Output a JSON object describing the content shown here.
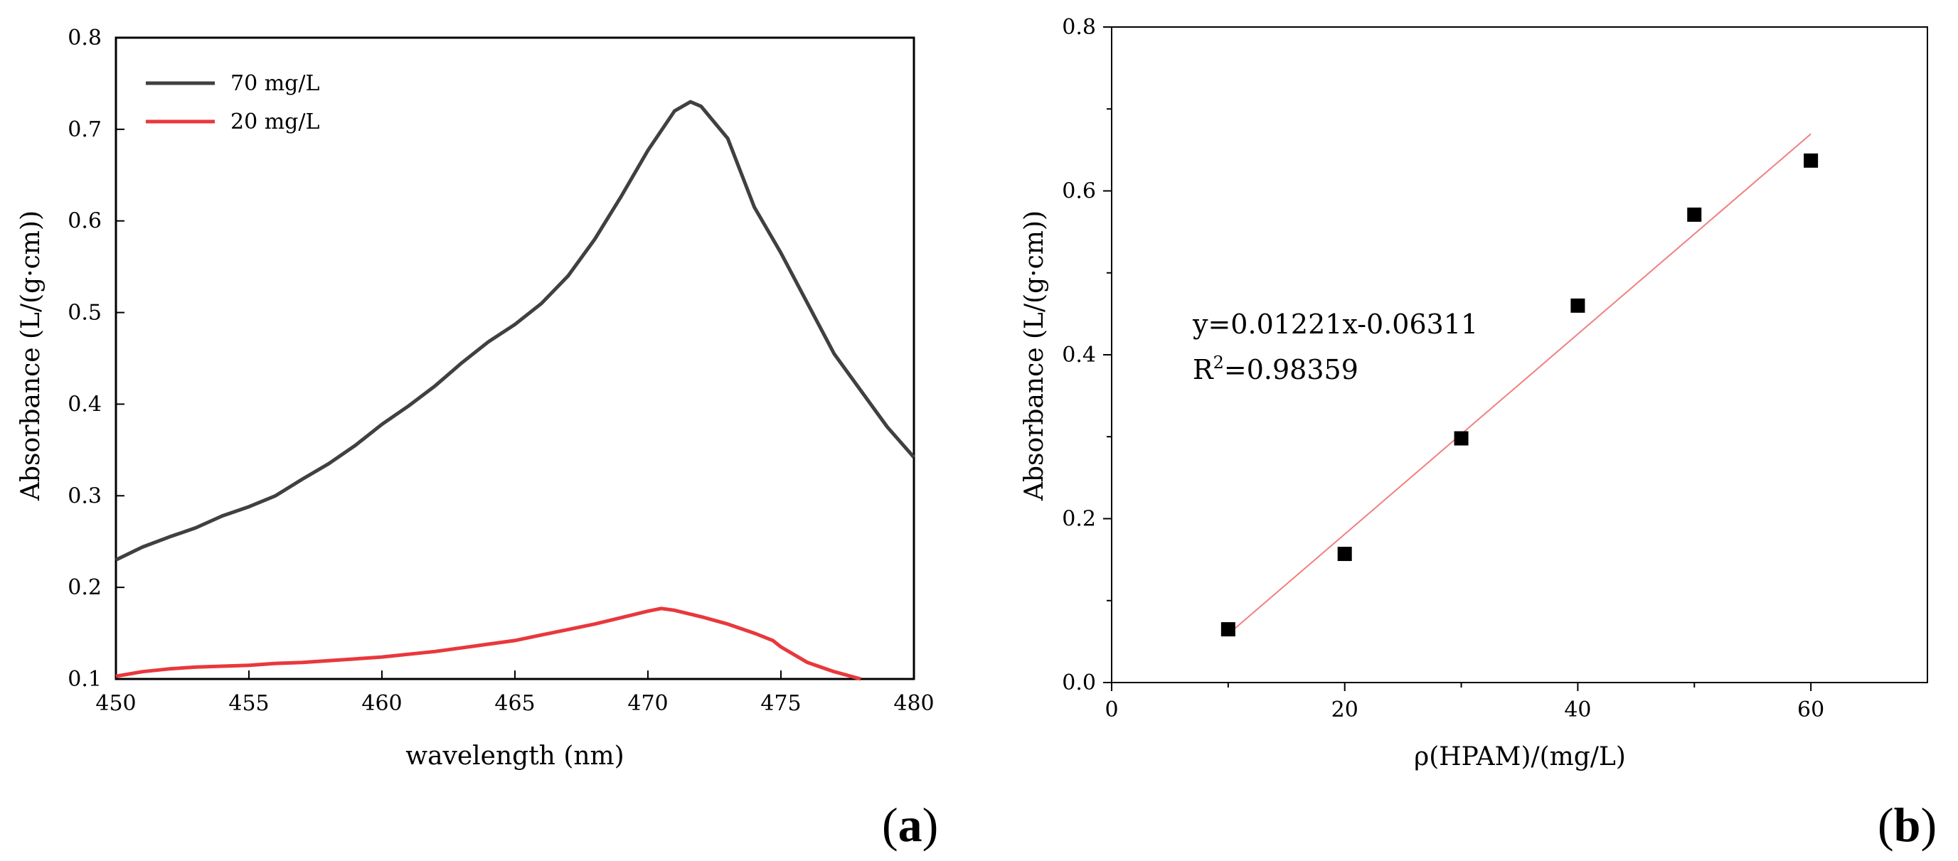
{
  "chart_data": [
    {
      "type": "line",
      "panel": "a",
      "panel_label": "a",
      "title": "",
      "xlabel": "wavelength (nm)",
      "ylabel": "Absorbance (L/(g·cm))",
      "xlim": [
        450,
        480
      ],
      "ylim": [
        0.1,
        0.8
      ],
      "xticks": [
        450,
        455,
        460,
        465,
        470,
        475,
        480
      ],
      "yticks": [
        0.1,
        0.2,
        0.3,
        0.4,
        0.5,
        0.6,
        0.7,
        0.8
      ],
      "grid": false,
      "legend_position": "top-left",
      "series": [
        {
          "name": "70 mg/L",
          "color": "#404040",
          "x": [
            450,
            451,
            452,
            453,
            454,
            455,
            456,
            457,
            458,
            459,
            460,
            461,
            462,
            463,
            464,
            465,
            466,
            467,
            468,
            469,
            470,
            471,
            471.6,
            472,
            473,
            474,
            475,
            476,
            477,
            478,
            479,
            480
          ],
          "y": [
            0.23,
            0.244,
            0.255,
            0.265,
            0.278,
            0.288,
            0.3,
            0.318,
            0.335,
            0.355,
            0.378,
            0.398,
            0.42,
            0.445,
            0.468,
            0.487,
            0.51,
            0.54,
            0.58,
            0.627,
            0.677,
            0.72,
            0.73,
            0.725,
            0.69,
            0.615,
            0.565,
            0.51,
            0.455,
            0.415,
            0.375,
            0.342
          ]
        },
        {
          "name": "20 mg/L",
          "color": "#e8383c",
          "x": [
            450,
            451,
            452,
            453,
            454,
            455,
            456,
            457,
            458,
            459,
            460,
            461,
            462,
            463,
            464,
            465,
            466,
            467,
            468,
            469,
            470,
            470.5,
            471,
            472,
            473,
            474,
            474.7,
            475,
            476,
            477,
            478
          ],
          "y": [
            0.103,
            0.108,
            0.111,
            0.113,
            0.114,
            0.115,
            0.117,
            0.118,
            0.12,
            0.122,
            0.124,
            0.127,
            0.13,
            0.134,
            0.138,
            0.142,
            0.148,
            0.154,
            0.16,
            0.167,
            0.174,
            0.177,
            0.175,
            0.168,
            0.16,
            0.15,
            0.142,
            0.135,
            0.118,
            0.108,
            0.1
          ]
        }
      ]
    },
    {
      "type": "scatter",
      "panel": "b",
      "panel_label": "b",
      "title": "",
      "xlabel": "ρ(HPAM)/(mg/L)",
      "ylabel": "Absorbance  (L/(g·cm))",
      "xlim": [
        0,
        70
      ],
      "ylim": [
        0,
        0.8
      ],
      "xticks": [
        0,
        20,
        40,
        60
      ],
      "yticks": [
        0.0,
        0.2,
        0.4,
        0.6,
        0.8
      ],
      "xtick_labels": [
        "0",
        "20",
        "40",
        "60"
      ],
      "ytick_labels": [
        "0.0",
        "0.2",
        "0.4",
        "0.6",
        "0.8"
      ],
      "grid": false,
      "points": {
        "name": "data",
        "color": "#000000",
        "x": [
          10,
          20,
          30,
          40,
          50,
          60
        ],
        "y": [
          0.065,
          0.157,
          0.298,
          0.46,
          0.571,
          0.637
        ]
      },
      "fit": {
        "color": "#f08080",
        "slope": 0.01221,
        "intercept": -0.06311,
        "x_range": [
          10,
          60
        ],
        "equation": "y=0.01221x-0.06311",
        "r2_prefix": "R",
        "r2_sup": "2",
        "r2_value": "=0.98359"
      }
    }
  ]
}
